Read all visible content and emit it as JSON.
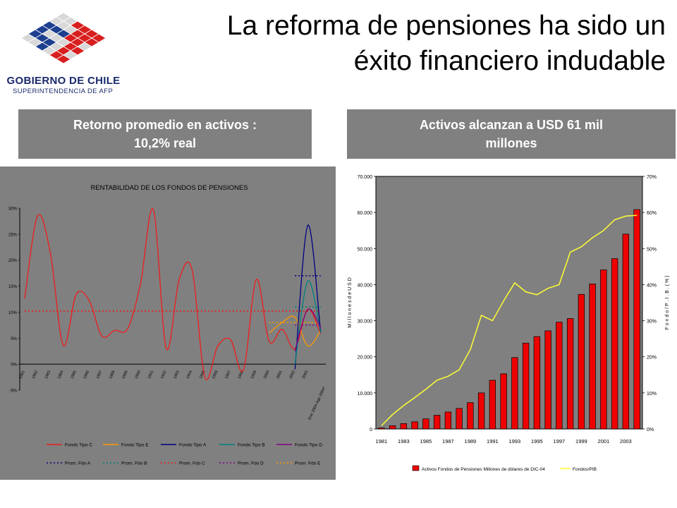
{
  "header": {
    "title_line1": "La reforma de pensiones ha sido un",
    "title_line2": "éxito financiero indudable",
    "logo_line1": "GOBIERNO DE CHILE",
    "logo_line2": "SUPERINTENDENCIA DE AFP"
  },
  "boxes": {
    "left_line1": "Retorno promedio en activos :",
    "left_line2": "10,2% real",
    "right_line1": "Activos alcanzan a USD 61 mil",
    "right_line2": "millones"
  },
  "colors": {
    "fondo_c": "#ee1c1c",
    "fondo_e": "#ff9900",
    "fondo_a": "#000080",
    "fondo_b": "#008080",
    "fondo_d": "#800080",
    "bars": "#ee0000",
    "pib_line": "#ffff33",
    "plot_bg": "#808080"
  },
  "chart_data": [
    {
      "type": "line",
      "title": "RENTABILIDAD DE LOS FONDOS DE PENSIONES",
      "ylim": [
        -5,
        30
      ],
      "yticks": [
        "-5%",
        "0%",
        "5%",
        "10%",
        "15%",
        "20%",
        "25%",
        "30%"
      ],
      "x": [
        "1981",
        "1982",
        "1983",
        "1984",
        "1985",
        "1986",
        "1987",
        "1988",
        "1989",
        "1990",
        "1991",
        "1992",
        "1993",
        "1994",
        "1995",
        "1996",
        "1997",
        "1998",
        "1999",
        "2000",
        "2001",
        "2002",
        "2003"
      ],
      "xlabel_extra": "Ene 2004-Ago 2004*",
      "series": [
        {
          "name": "Fondo Tipo C",
          "x": [
            1981,
            1982,
            1983,
            1984,
            1985,
            1986,
            1987,
            1988,
            1989,
            1990,
            1991,
            1992,
            1993,
            1994,
            1995,
            1996,
            1997,
            1998,
            1999,
            2000,
            2001,
            2002,
            2003,
            2004
          ],
          "values": [
            12.6,
            28.5,
            21.3,
            3.6,
            13.4,
            12.3,
            5.4,
            6.5,
            6.8,
            15.5,
            29.7,
            3.0,
            16.2,
            18.2,
            -2.5,
            3.5,
            4.7,
            -1.1,
            16.3,
            4.4,
            6.7,
            3.0,
            10.6,
            5.8
          ]
        },
        {
          "name": "Fondo Tipo E",
          "x": [
            2000,
            2001,
            2002,
            2003,
            2004
          ],
          "values": [
            6.0,
            8.0,
            9.0,
            3.5,
            6.5
          ]
        },
        {
          "name": "Fondo Tipo A",
          "x": [
            2002,
            2003,
            2004
          ],
          "values": [
            -1.0,
            26.7,
            6.0
          ]
        },
        {
          "name": "Fondo Tipo B",
          "x": [
            2002,
            2003,
            2004
          ],
          "values": [
            0.0,
            16.0,
            6.0
          ]
        },
        {
          "name": "Fondo Tipo D",
          "x": [
            2002,
            2003,
            2004
          ],
          "values": [
            2.5,
            10.5,
            7.0
          ]
        }
      ],
      "averages": [
        {
          "name": "Prom. Fdo A",
          "value": 17.0
        },
        {
          "name": "Prom. Fdo B",
          "value": 11.0
        },
        {
          "name": "Prom. Fdo C",
          "value": 10.2
        },
        {
          "name": "Prom. Fdo D",
          "value": 7.5
        },
        {
          "name": "Prom. Fdo E",
          "value": 8.0
        }
      ]
    },
    {
      "type": "bar",
      "categories": [
        "1981",
        "1982",
        "1983",
        "1984",
        "1985",
        "1986",
        "1987",
        "1988",
        "1989",
        "1990",
        "1991",
        "1992",
        "1993",
        "1994",
        "1995",
        "1996",
        "1997",
        "1998",
        "1999",
        "2000",
        "2001",
        "2002",
        "2003",
        "2004"
      ],
      "xtick_labels": [
        "1981",
        "1983",
        "1985",
        "1987",
        "1989",
        "1991",
        "1993",
        "1995",
        "1997",
        "1999",
        "2001",
        "2003"
      ],
      "ylabel": "M i l l o n e s   d e   U S D",
      "y2label": "F o n d o / P . I . B .  ( % )",
      "ylim": [
        0,
        70000
      ],
      "yticks": [
        "0",
        "10.000",
        "20.000",
        "30.000",
        "40.000",
        "50.000",
        "60.000",
        "70.000"
      ],
      "y2lim": [
        0,
        70
      ],
      "y2ticks": [
        "0%",
        "10%",
        "20%",
        "30%",
        "40%",
        "50%",
        "60%",
        "70%"
      ],
      "series": [
        {
          "name": "Activos Fondos de Pensiones Millones de dólares de DIC-04",
          "axis": "left",
          "values": [
            300,
            900,
            1500,
            2000,
            2800,
            3800,
            4700,
            5700,
            7300,
            10000,
            13500,
            15300,
            19800,
            23800,
            25600,
            27200,
            29600,
            30600,
            37300,
            40200,
            44100,
            47200,
            54000,
            60800
          ]
        },
        {
          "name": "Fondos/PIB",
          "axis": "right",
          "values": [
            0.9,
            4.0,
            6.5,
            8.7,
            11.0,
            13.5,
            14.6,
            16.4,
            22.0,
            31.5,
            30.0,
            35.5,
            40.5,
            38.0,
            37.2,
            39.0,
            40.0,
            49.0,
            50.5,
            53.0,
            55.0,
            58.0,
            59.0,
            59.2
          ]
        }
      ]
    }
  ]
}
